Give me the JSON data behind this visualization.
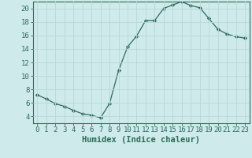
{
  "x": [
    0,
    1,
    2,
    3,
    4,
    5,
    6,
    7,
    8,
    9,
    10,
    11,
    12,
    13,
    14,
    15,
    16,
    17,
    18,
    19,
    20,
    21,
    22,
    23
  ],
  "y": [
    7.2,
    6.6,
    5.9,
    5.5,
    4.9,
    4.4,
    4.2,
    3.8,
    5.9,
    10.8,
    14.3,
    15.9,
    18.2,
    18.2,
    20.0,
    20.5,
    21.0,
    20.4,
    20.1,
    18.5,
    16.9,
    16.2,
    15.8,
    15.6
  ],
  "line_color": "#2e6b5e",
  "marker": "D",
  "marker_size": 2.2,
  "bg_color": "#ceeaea",
  "grid_color": "#b8d8d8",
  "xlabel": "Humidex (Indice chaleur)",
  "xlim": [
    -0.5,
    23.5
  ],
  "ylim": [
    3,
    21
  ],
  "yticks": [
    4,
    6,
    8,
    10,
    12,
    14,
    16,
    18,
    20
  ],
  "xticks": [
    0,
    1,
    2,
    3,
    4,
    5,
    6,
    7,
    8,
    9,
    10,
    11,
    12,
    13,
    14,
    15,
    16,
    17,
    18,
    19,
    20,
    21,
    22,
    23
  ],
  "tick_label_fontsize": 6.5,
  "xlabel_fontsize": 7.5
}
